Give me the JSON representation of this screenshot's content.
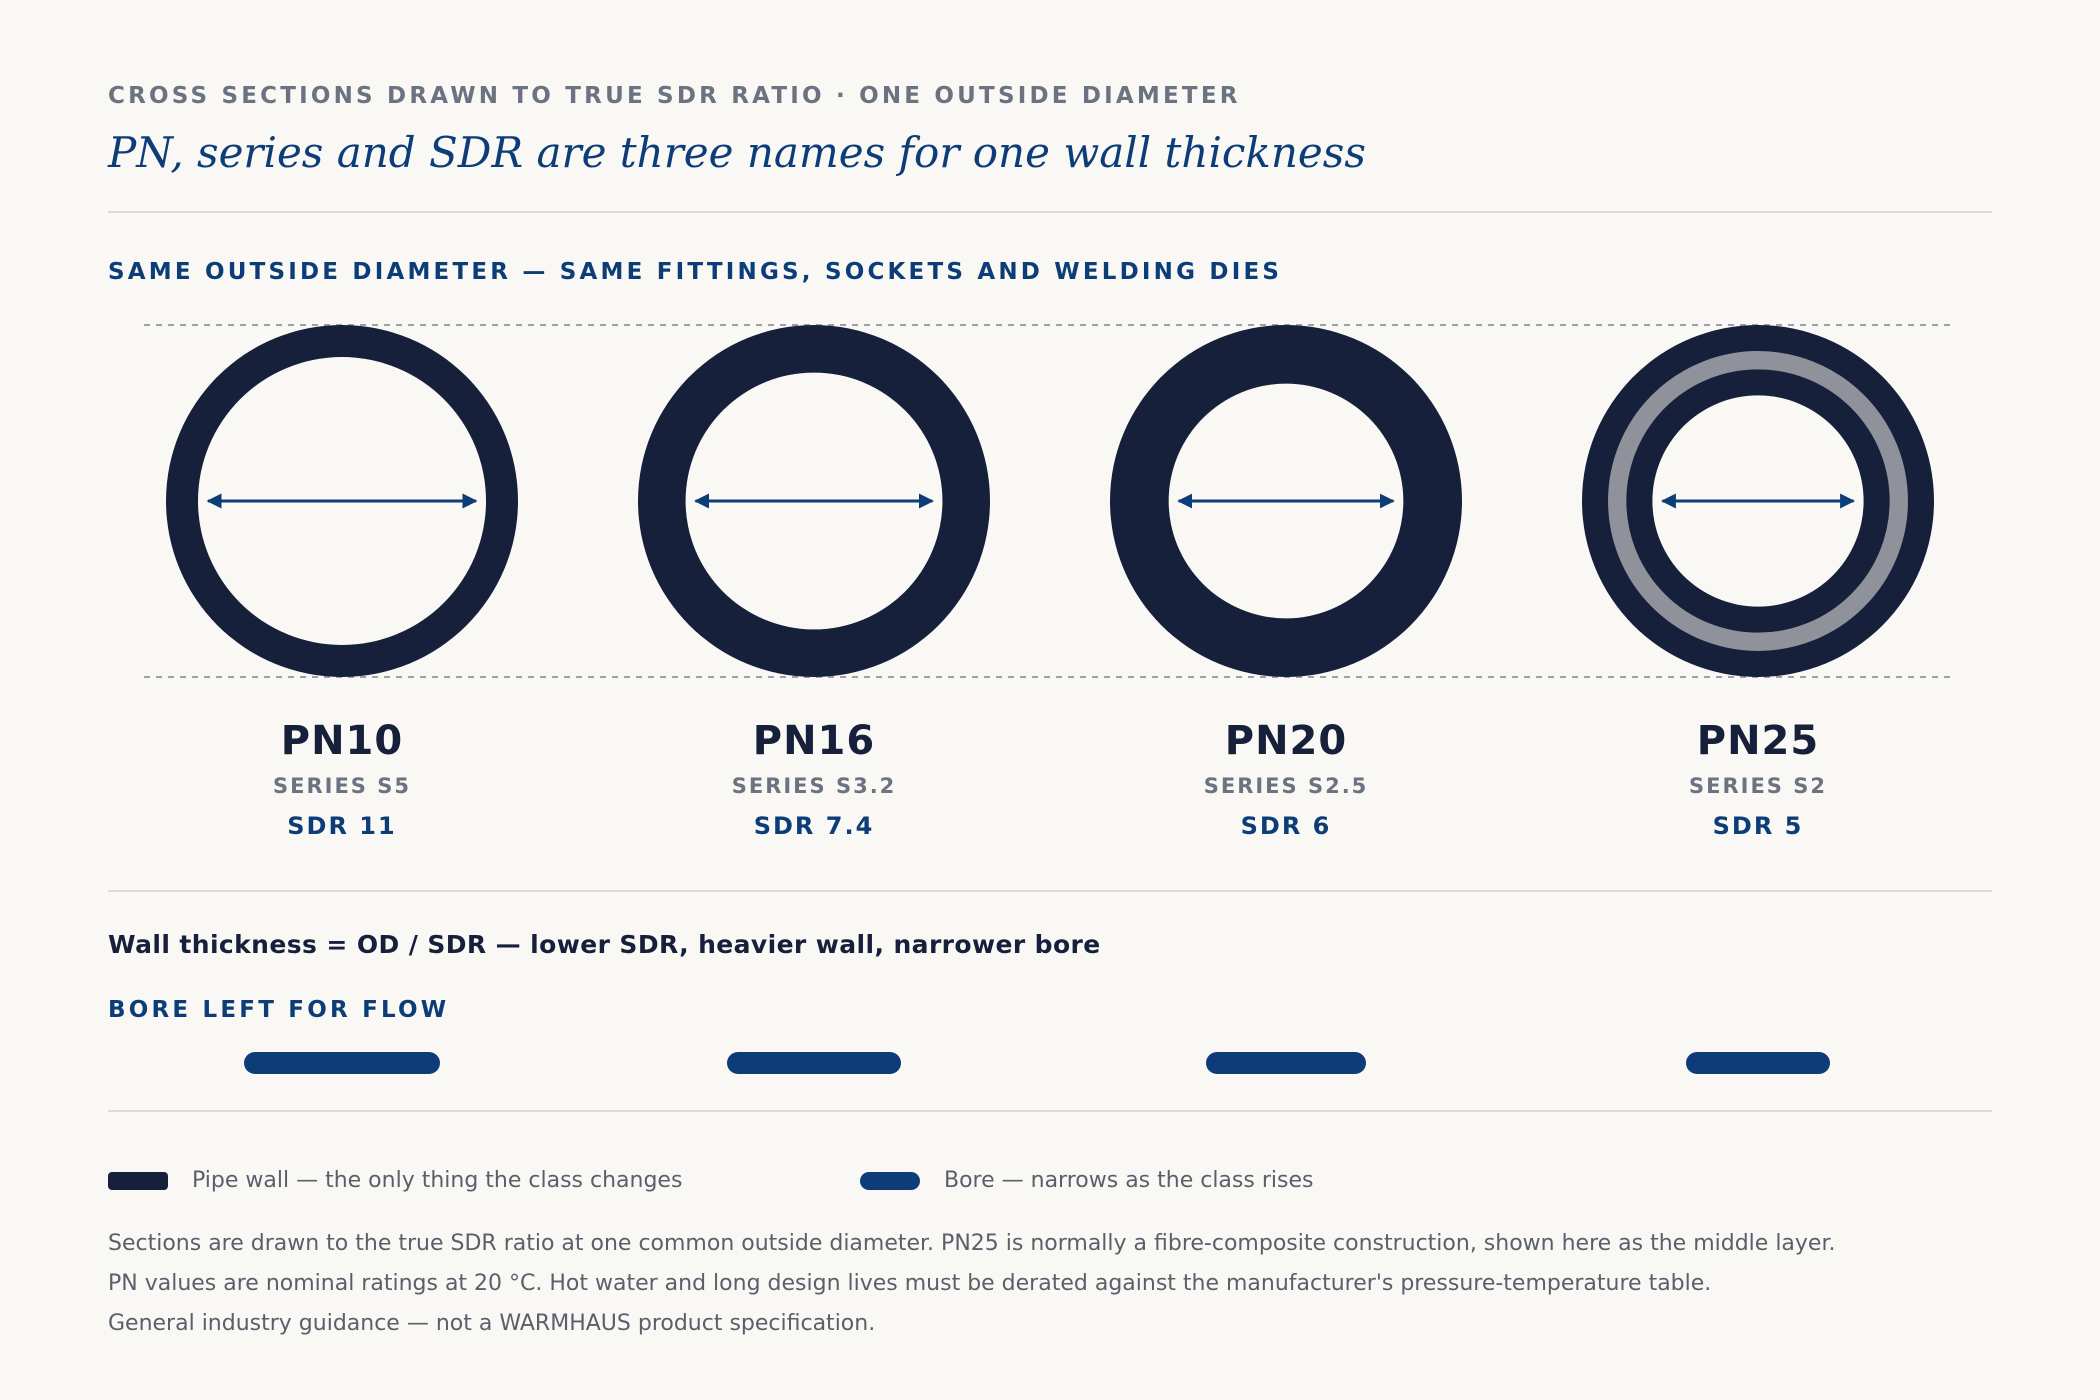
{
  "header": {
    "eyebrow": "CROSS SECTIONS DRAWN TO TRUE SDR RATIO · ONE OUTSIDE DIAMETER",
    "title": "PN, series and SDR are three names for one wall thickness"
  },
  "diagram": {
    "section_label": "SAME OUTSIDE DIAMETER — SAME FITTINGS, SOCKETS AND WELDING DIES",
    "pipes": [
      {
        "pn": "PN10",
        "series": "SERIES S5",
        "sdr_label": "SDR 11",
        "sdr": 11,
        "composite": false
      },
      {
        "pn": "PN16",
        "series": "SERIES S3.2",
        "sdr_label": "SDR 7.4",
        "sdr": 7.4,
        "composite": false
      },
      {
        "pn": "PN20",
        "series": "SERIES S2.5",
        "sdr_label": "SDR 6",
        "sdr": 6,
        "composite": false
      },
      {
        "pn": "PN25",
        "series": "SERIES S2",
        "sdr_label": "SDR 5",
        "sdr": 5,
        "composite": true
      }
    ]
  },
  "formula": "Wall thickness = OD / SDR — lower SDR, heavier wall, narrower bore",
  "bore": {
    "label": "BORE LEFT FOR FLOW"
  },
  "legend": {
    "wall_label": "Pipe wall — the only thing the class changes",
    "bore_label": "Bore — narrows as the class rises"
  },
  "notes": [
    "Sections are drawn to the true SDR ratio at one common outside diameter. PN25 is normally a fibre-composite construction, shown here as the middle layer.",
    "PN values are nominal ratings at 20 °C. Hot water and long design lives must be derated against the manufacturer's pressure-temperature table.",
    "General industry guidance — not a WARMHAUS product specification."
  ],
  "colors": {
    "wall": "#16203a",
    "bore": "#0c3d78",
    "composite_layer": "#8f929a",
    "background": "#f9f8f4"
  }
}
